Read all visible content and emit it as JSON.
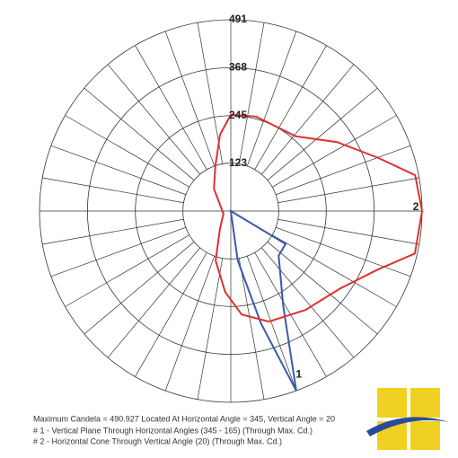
{
  "chart_data": {
    "type": "polar",
    "rlim": [
      0,
      491
    ],
    "rticks": [
      123,
      245,
      368,
      491
    ],
    "grid": true,
    "series": [
      {
        "name": "1",
        "color": "#3a5ba8",
        "angles": [
          0,
          121,
          133,
          151,
          160,
          165,
          172
        ],
        "values": [
          0,
          164,
          168,
          277,
          491,
          298,
          128
        ]
      },
      {
        "name": "2",
        "color": "#e03030",
        "angles": [
          323,
          341,
          352,
          0,
          15,
          41,
          57,
          70,
          79,
          90,
          103,
          112,
          125,
          143,
          161,
          174,
          184,
          197,
          211,
          250
        ],
        "values": [
          72,
          122,
          198,
          247,
          251,
          254,
          325,
          401,
          482,
          491,
          485,
          404,
          345,
          318,
          300,
          267,
          208,
          133,
          54,
          20
        ]
      }
    ],
    "notes": [
      "Maximum Candela = 490.927   Located At Horizontal Angle = 345, Vertical Angle = 20",
      "# 1 - Vertical Plane Through Horizontal Angles (345 - 165) (Through Max. Cd.)",
      "# 2 - Horizontal Cone Through Vertical Angle (20) (Through Max. Cd.)"
    ]
  }
}
